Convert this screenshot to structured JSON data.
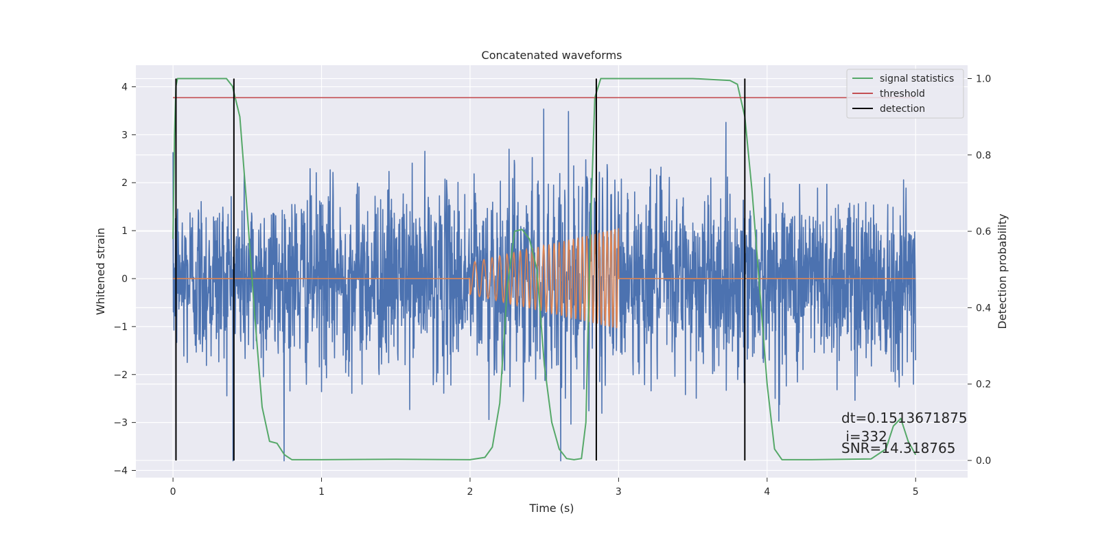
{
  "chart_data": {
    "type": "line",
    "title": "Concatenated waveforms",
    "xlabel": "Time (s)",
    "ylabel": "Whitened strain",
    "y2label": "Detection probability",
    "xlim": [
      -0.25,
      5.35
    ],
    "ylim": [
      -4.15,
      4.45
    ],
    "y2lim": [
      -0.045,
      1.035
    ],
    "xticks": [
      0,
      1,
      2,
      3,
      4,
      5
    ],
    "yticks": [
      -4,
      -3,
      -2,
      -1,
      0,
      1,
      2,
      3,
      4
    ],
    "y2ticks": [
      0.0,
      0.2,
      0.4,
      0.6,
      0.8,
      1.0
    ],
    "y2ticklabels": [
      "0.0",
      "0.2",
      "0.4",
      "0.6",
      "0.8",
      "1.0"
    ],
    "grid": true,
    "legend_position": "top-right",
    "colors": {
      "strain": "#4c72b0",
      "injected": "#dd8452",
      "signal_statistics": "#55a868",
      "threshold": "#c44e52",
      "detection": "#000000",
      "background": "#eaeaf2",
      "grid": "#ffffff"
    },
    "series": [
      {
        "name": "",
        "role": "strain",
        "x_range": [
          0,
          5
        ],
        "noise_std": 0.95,
        "approx_range": [
          -3.8,
          4.1
        ]
      },
      {
        "name": "",
        "role": "injected",
        "x_range": [
          0,
          5
        ],
        "chirp_start": 2.0,
        "chirp_end": 3.0,
        "amplitude_start": 0.33,
        "amplitude_end": 1.05
      },
      {
        "name": "signal statistics",
        "role": "signal_statistics",
        "axis": "right",
        "x": [
          0.0,
          0.01,
          0.02,
          0.03,
          0.05,
          0.1,
          0.2,
          0.3,
          0.36,
          0.4,
          0.45,
          0.5,
          0.55,
          0.6,
          0.65,
          0.7,
          0.75,
          0.8,
          1.0,
          1.5,
          2.0,
          2.1,
          2.15,
          2.2,
          2.25,
          2.3,
          2.35,
          2.4,
          2.45,
          2.5,
          2.55,
          2.6,
          2.65,
          2.7,
          2.75,
          2.78,
          2.81,
          2.84,
          2.88,
          2.95,
          3.5,
          3.75,
          3.8,
          3.85,
          3.9,
          3.95,
          4.0,
          4.05,
          4.1,
          4.3,
          4.7,
          4.8,
          4.85,
          4.9,
          4.95,
          5.0
        ],
        "y": [
          0.58,
          0.85,
          0.98,
          1.0,
          1.0,
          1.0,
          1.0,
          1.0,
          1.0,
          0.98,
          0.9,
          0.65,
          0.38,
          0.14,
          0.05,
          0.045,
          0.015,
          0.002,
          0.002,
          0.003,
          0.002,
          0.008,
          0.035,
          0.15,
          0.45,
          0.6,
          0.605,
          0.58,
          0.5,
          0.25,
          0.1,
          0.03,
          0.005,
          0.002,
          0.005,
          0.1,
          0.6,
          0.95,
          1.0,
          1.0,
          1.0,
          0.995,
          0.985,
          0.9,
          0.7,
          0.45,
          0.2,
          0.03,
          0.002,
          0.002,
          0.004,
          0.03,
          0.09,
          0.11,
          0.05,
          0.015
        ]
      },
      {
        "name": "threshold",
        "role": "threshold",
        "axis": "right",
        "x": [
          0,
          5
        ],
        "y": [
          0.95,
          0.95
        ]
      },
      {
        "name": "detection",
        "role": "detection",
        "axis": "right",
        "vlines": [
          0.02,
          0.41,
          2.85,
          3.85
        ],
        "y_range": [
          0.0,
          1.0
        ]
      }
    ],
    "annotations": {
      "dt": "dt=0.1513671875",
      "i": " i=332",
      "snr": "SNR=14.318765"
    }
  }
}
